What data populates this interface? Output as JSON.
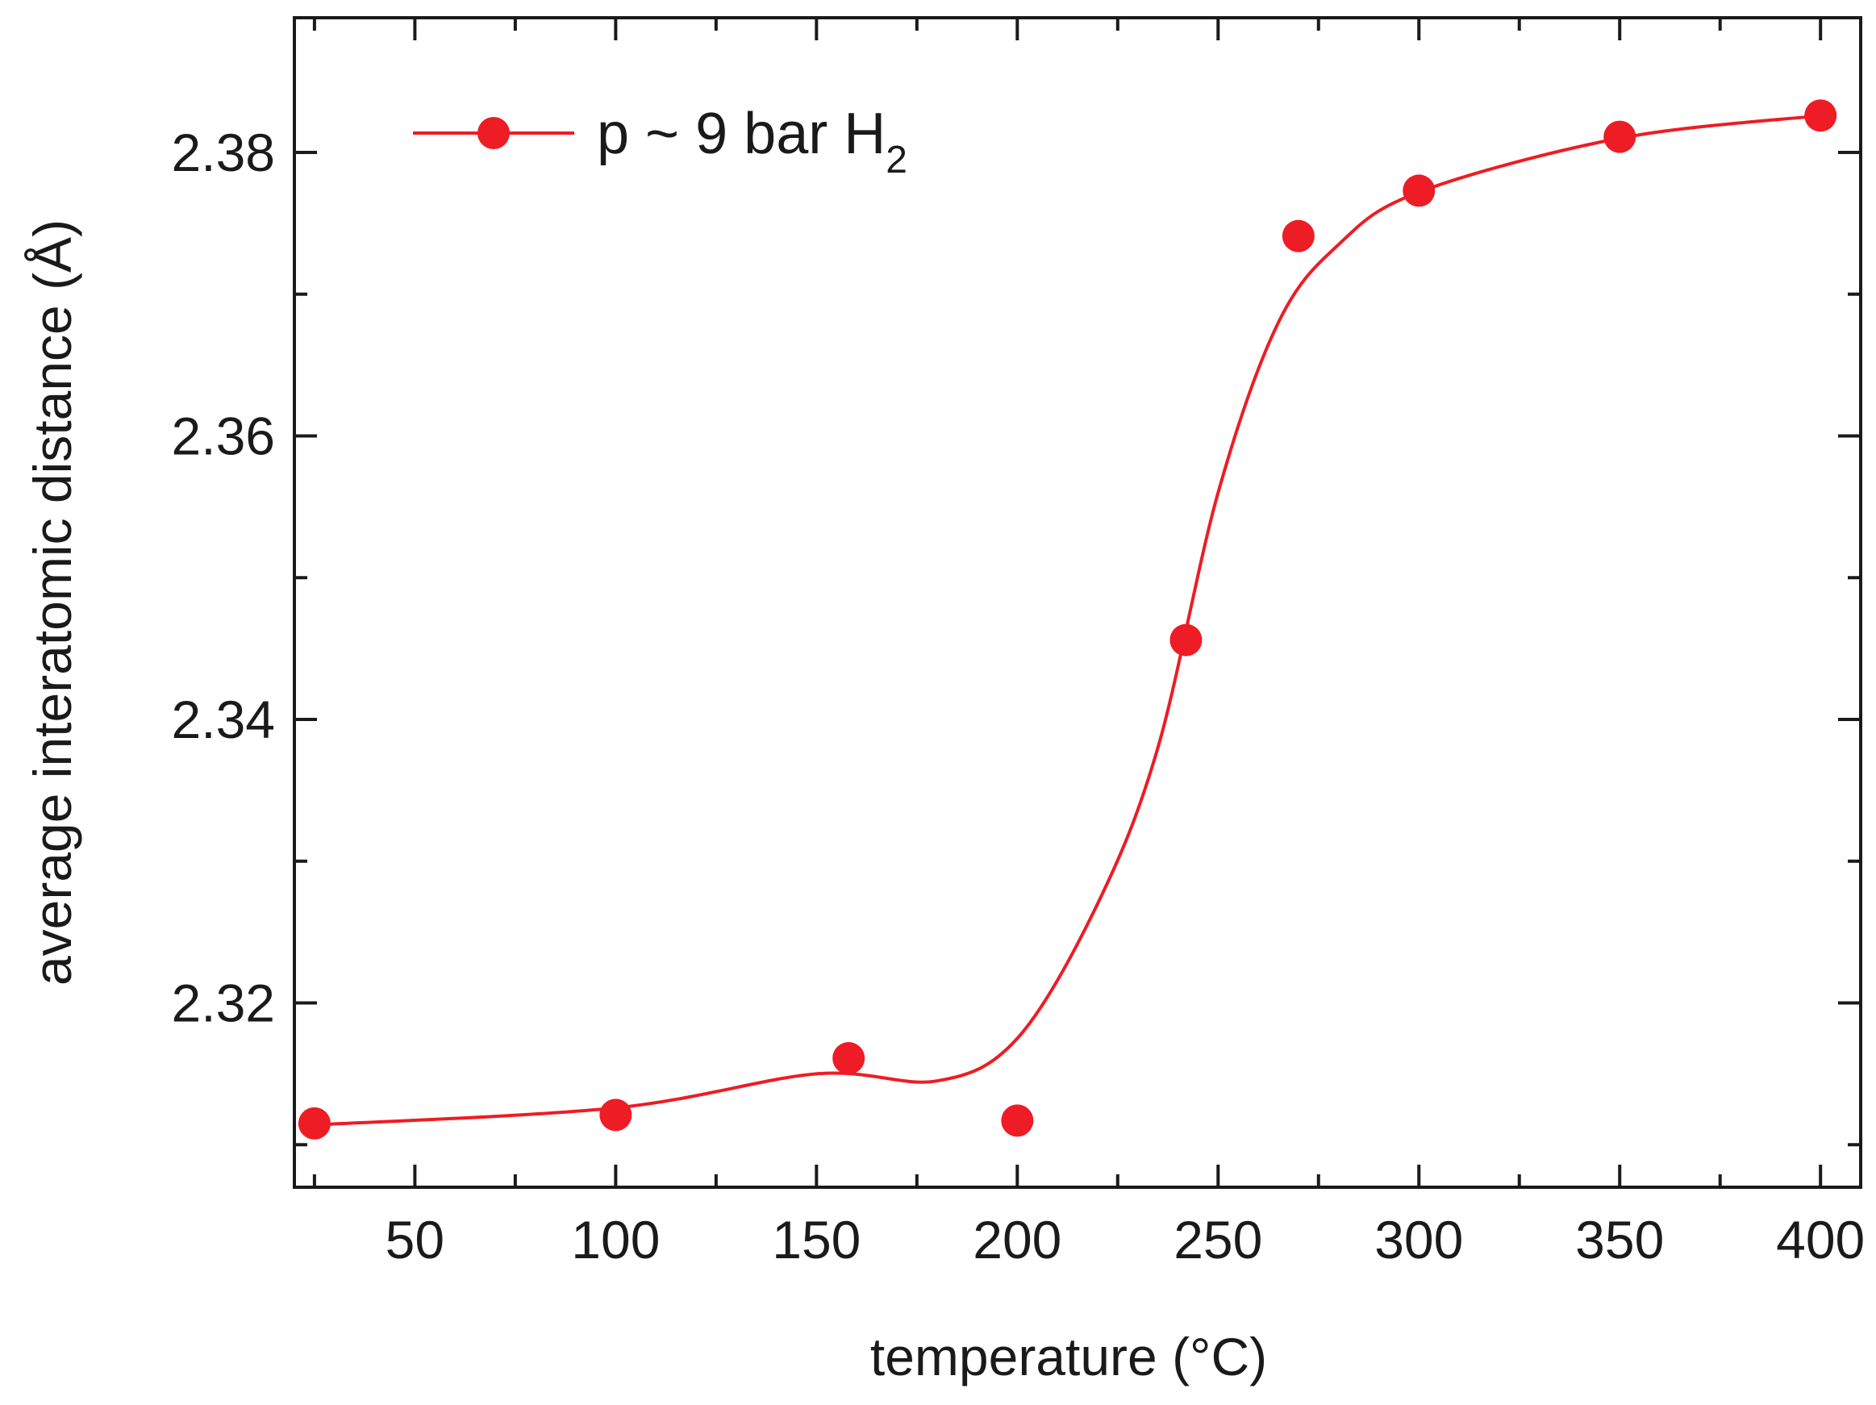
{
  "chart_data": {
    "type": "scatter",
    "title": "",
    "xlabel": "temperature (°C)",
    "ylabel": "average interatomic distance (Å)",
    "xlim": [
      20,
      410
    ],
    "ylim": [
      2.307,
      2.3895
    ],
    "x_ticks": [
      50,
      100,
      150,
      200,
      250,
      300,
      350,
      400
    ],
    "x_tick_labels": [
      "50",
      "100",
      "150",
      "200",
      "250",
      "300",
      "350",
      "400"
    ],
    "y_ticks": [
      2.32,
      2.34,
      2.36,
      2.38
    ],
    "y_tick_labels": [
      "2.32",
      "2.34",
      "2.36",
      "2.38"
    ],
    "grid": false,
    "legend_position": "top-left",
    "series": [
      {
        "name": "p ~ 9 bar H",
        "name_subscript": "2",
        "color": "#ee1c24",
        "marker": "circle",
        "x": [
          25,
          100,
          158,
          200,
          242,
          270,
          300,
          350,
          400
        ],
        "y": [
          2.3115,
          2.3121,
          2.3161,
          2.3117,
          2.3456,
          2.3741,
          2.3773,
          2.3811,
          2.3826
        ]
      }
    ],
    "fit_curve": {
      "color": "#ee1c24",
      "x": [
        25,
        100,
        150,
        180,
        200,
        220,
        235,
        250,
        265,
        280,
        300,
        350,
        400
      ],
      "y": [
        2.3114,
        2.3126,
        2.315,
        2.3145,
        2.3175,
        2.327,
        2.338,
        2.356,
        2.368,
        2.3735,
        2.3772,
        2.381,
        2.3826
      ]
    }
  }
}
